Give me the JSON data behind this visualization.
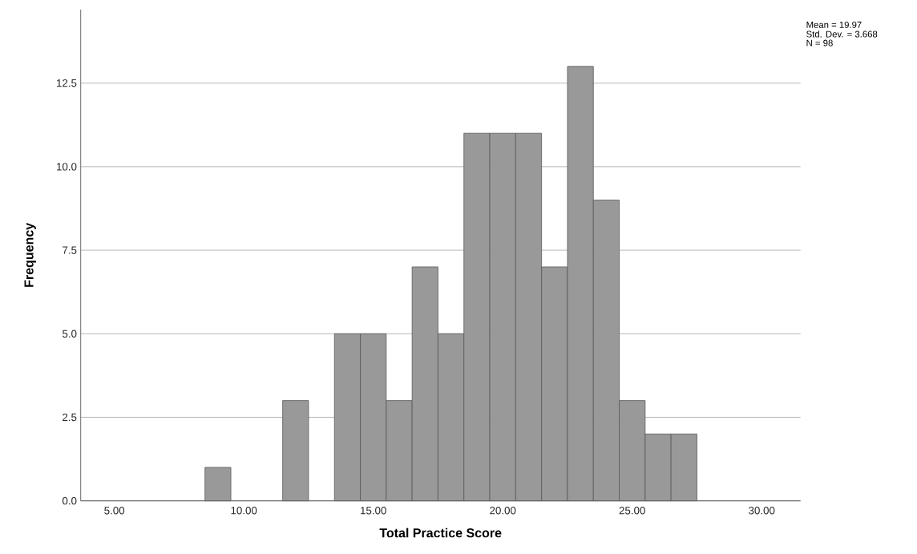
{
  "chart_data": {
    "type": "histogram",
    "xlabel": "Total Practice Score",
    "ylabel": "Frequency",
    "bins": [
      8.5,
      9.5,
      10.5,
      11.5,
      12.5,
      13.5,
      14.5,
      15.5,
      16.5,
      17.5,
      18.5,
      19.5,
      20.5,
      21.5,
      22.5,
      23.5,
      24.5,
      25.5,
      26.5,
      27.5
    ],
    "values": [
      1,
      0,
      0,
      3,
      0,
      5,
      5,
      3,
      7,
      5,
      11,
      11,
      11,
      7,
      13,
      9,
      3,
      2,
      2
    ],
    "color": "#999999",
    "xlim": [
      3.7,
      31.5
    ],
    "xticks": [
      {
        "value": 5,
        "label": "5.00"
      },
      {
        "value": 10,
        "label": "10.00"
      },
      {
        "value": 15,
        "label": "15.00"
      },
      {
        "value": 20,
        "label": "20.00"
      },
      {
        "value": 25,
        "label": "25.00"
      },
      {
        "value": 30,
        "label": "30.00"
      }
    ],
    "ylim": [
      0,
      14.7
    ],
    "yticks": [
      {
        "value": 0,
        "label": "0.0"
      },
      {
        "value": 2.5,
        "label": "2.5"
      },
      {
        "value": 5,
        "label": "5.0"
      },
      {
        "value": 7.5,
        "label": "7.5"
      },
      {
        "value": 10,
        "label": "10.0"
      },
      {
        "value": 12.5,
        "label": "12.5"
      }
    ],
    "grid": "y",
    "annotations": [
      "Mean = 19.97",
      "Std. Dev. = 3.668",
      "N = 98"
    ]
  }
}
